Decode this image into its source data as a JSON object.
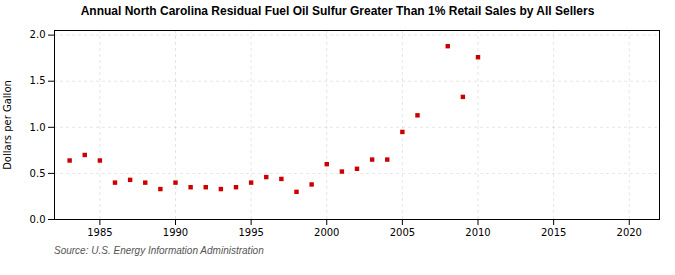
{
  "chart_data": {
    "type": "scatter",
    "title": "Annual North Carolina Residual Fuel Oil Sulfur Greater Than 1% Retail Sales by All Sellers",
    "ylabel": "Dollars per Gallon",
    "source": "Source: U.S. Energy Information Administration",
    "x": [
      1983,
      1984,
      1985,
      1986,
      1987,
      1988,
      1989,
      1990,
      1991,
      1992,
      1993,
      1994,
      1995,
      1996,
      1997,
      1998,
      1999,
      2000,
      2001,
      2002,
      2003,
      2004,
      2005,
      2006,
      2008,
      2009,
      2010
    ],
    "values": [
      0.64,
      0.7,
      0.64,
      0.4,
      0.43,
      0.4,
      0.33,
      0.4,
      0.35,
      0.35,
      0.33,
      0.35,
      0.4,
      0.46,
      0.44,
      0.3,
      0.38,
      0.6,
      0.52,
      0.55,
      0.65,
      0.65,
      0.95,
      1.13,
      1.88,
      1.33,
      1.76
    ],
    "color": "#cc0000",
    "marker": "square",
    "xlim": [
      1982,
      2022
    ],
    "ylim": [
      0.0,
      2.05
    ],
    "xticks": [
      1985,
      1990,
      1995,
      2000,
      2005,
      2010,
      2015,
      2020
    ],
    "yticks": [
      {
        "value": 0,
        "label": "0.0"
      },
      0.5,
      {
        "value": 1,
        "label": "1.0"
      },
      1.5,
      {
        "value": 2,
        "label": "2.0"
      }
    ],
    "grid": true
  }
}
